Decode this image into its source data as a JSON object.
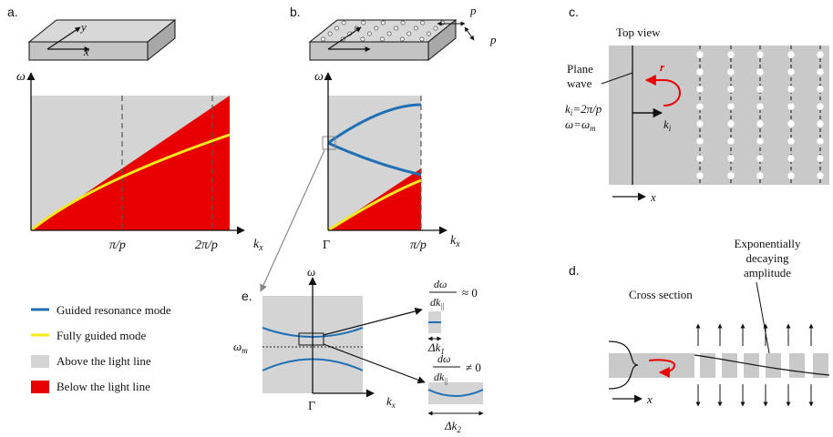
{
  "panels": {
    "a": {
      "label": "a.",
      "y_axis": "ω",
      "x_axis": "k",
      "x_sub": "x",
      "ticks": [
        "π/p",
        "2π/p"
      ],
      "slab_axes": [
        "y",
        "x"
      ]
    },
    "b": {
      "label": "b.",
      "y_axis": "ω",
      "x_axis": "k",
      "x_sub": "x",
      "ticks": [
        "Γ",
        "π/p"
      ],
      "period": "p"
    },
    "c": {
      "label": "c.",
      "title": "Top view",
      "plane_wave_line1": "Plane",
      "plane_wave_line2": "wave",
      "r": "r",
      "ki_eq": "k",
      "ki_eq_sub": "i",
      "ki_eq_rhs": "=2π/p",
      "omega_eq": "ω=ω",
      "omega_eq_sub": "m",
      "ki_arrow": "k",
      "ki_arrow_sub": "i",
      "x_axis": "x"
    },
    "d": {
      "label": "d.",
      "title": "Cross section",
      "annotation_line1": "Exponentially",
      "annotation_line2": "decaying",
      "annotation_line3": "amplitude",
      "x_axis": "x"
    },
    "e": {
      "label": "e.",
      "y_axis": "ω",
      "x_axis": "k",
      "x_sub": "x",
      "gamma": "Γ",
      "omega_m": "ω",
      "omega_m_sub": "m",
      "top_num": "dω",
      "top_den": "dk",
      "top_den_sub": "||",
      "top_rel": "≈ 0",
      "top_delta": "Δk",
      "top_delta_sub": "1",
      "bot_num": "dω",
      "bot_den": "dk",
      "bot_den_sub": "||",
      "bot_rel": "≠ 0",
      "bot_delta": "Δk",
      "bot_delta_sub": "2"
    }
  },
  "legend": [
    {
      "label": "Guided resonance mode",
      "color": "#1f6fb5",
      "kind": "line"
    },
    {
      "label": "Fully guided mode",
      "color": "#f2ea1a",
      "kind": "line"
    },
    {
      "label": "Above the light line",
      "color": "#d4d4d4",
      "kind": "box"
    },
    {
      "label": "Below the light line",
      "color": "#e80000",
      "kind": "box"
    }
  ],
  "colors": {
    "grey": "#d4d4d4",
    "dark_grey": "#b4b4b4",
    "red": "#e80000",
    "blue": "#1f6fb5",
    "yellow": "#f2ea1a"
  }
}
